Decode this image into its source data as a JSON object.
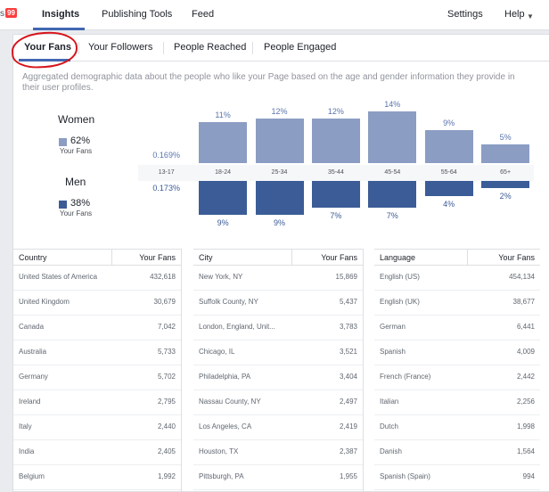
{
  "topbar": {
    "notif_prefix": "s",
    "notif_count": "99",
    "nav": [
      {
        "label": "Insights",
        "active": true
      },
      {
        "label": "Publishing Tools",
        "active": false
      },
      {
        "label": "Feed",
        "active": false
      }
    ],
    "settings_label": "Settings",
    "help_label": "Help"
  },
  "tabs": [
    {
      "label": "Your Fans",
      "active": true
    },
    {
      "label": "Your Followers",
      "active": false
    },
    {
      "label": "People Reached",
      "active": false
    },
    {
      "label": "People Engaged",
      "active": false
    }
  ],
  "description": "Aggregated demographic data about the people who like your Page based on the age and gender information they provide in their user profiles.",
  "gender": {
    "women": {
      "label": "Women",
      "pct": "62%",
      "sub": "Your Fans",
      "small_pct": "0.169%",
      "color": "#8b9dc3"
    },
    "men": {
      "label": "Men",
      "pct": "38%",
      "sub": "Your Fans",
      "small_pct": "0.173%",
      "color": "#3b5c97"
    }
  },
  "chart_data": {
    "type": "bar",
    "categories": [
      "13-17",
      "18-24",
      "25-34",
      "35-44",
      "45-54",
      "55-64",
      "65+"
    ],
    "series": [
      {
        "name": "Women",
        "values": [
          0.169,
          11,
          12,
          12,
          14,
          9,
          5
        ],
        "labels": [
          "",
          "11%",
          "12%",
          "12%",
          "14%",
          "9%",
          "5%"
        ]
      },
      {
        "name": "Men",
        "values": [
          0.173,
          9,
          9,
          7,
          7,
          4,
          2
        ],
        "labels": [
          "",
          "9%",
          "9%",
          "7%",
          "7%",
          "4%",
          "2%"
        ]
      }
    ],
    "ylim": [
      0,
      14
    ]
  },
  "tables": [
    {
      "headers": [
        "Country",
        "Your Fans"
      ],
      "rows": [
        [
          "United States of America",
          "432,618"
        ],
        [
          "United Kingdom",
          "30,679"
        ],
        [
          "Canada",
          "7,042"
        ],
        [
          "Australia",
          "5,733"
        ],
        [
          "Germany",
          "5,702"
        ],
        [
          "Ireland",
          "2,795"
        ],
        [
          "Italy",
          "2,440"
        ],
        [
          "India",
          "2,405"
        ],
        [
          "Belgium",
          "1,992"
        ]
      ]
    },
    {
      "headers": [
        "City",
        "Your Fans"
      ],
      "rows": [
        [
          "New York, NY",
          "15,869"
        ],
        [
          "Suffolk County, NY",
          "5,437"
        ],
        [
          "London, England, Unit...",
          "3,783"
        ],
        [
          "Chicago, IL",
          "3,521"
        ],
        [
          "Philadelphia, PA",
          "3,404"
        ],
        [
          "Nassau County, NY",
          "2,497"
        ],
        [
          "Los Angeles, CA",
          "2,419"
        ],
        [
          "Houston, TX",
          "2,387"
        ],
        [
          "Pittsburgh, PA",
          "1,955"
        ]
      ]
    },
    {
      "headers": [
        "Language",
        "Your Fans"
      ],
      "rows": [
        [
          "English (US)",
          "454,134"
        ],
        [
          "English (UK)",
          "38,677"
        ],
        [
          "German",
          "6,441"
        ],
        [
          "Spanish",
          "4,009"
        ],
        [
          "French (France)",
          "2,442"
        ],
        [
          "Italian",
          "2,256"
        ],
        [
          "Dutch",
          "1,998"
        ],
        [
          "Danish",
          "1,564"
        ],
        [
          "Spanish (Spain)",
          "994"
        ]
      ]
    }
  ]
}
